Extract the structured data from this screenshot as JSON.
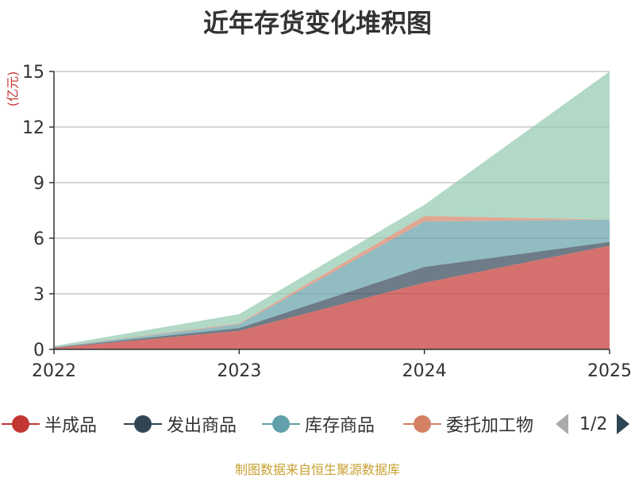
{
  "title": "近年存货变化堆积图",
  "unit_label": "(亿元)",
  "source": "制图数据来自恒生聚源数据库",
  "legend_page": "1/2",
  "chart_data": {
    "type": "area",
    "stacked": true,
    "title": "近年存货变化堆积图",
    "ylabel": "(亿元)",
    "xlabel": "",
    "x": [
      "2022",
      "2023",
      "2024",
      "2025"
    ],
    "ylim": [
      0,
      15
    ],
    "yticks": [
      0,
      3,
      6,
      9,
      12,
      15
    ],
    "grid": true,
    "legend_position": "bottom",
    "series": [
      {
        "name": "半成品",
        "color": "#c23531",
        "values": [
          0.08,
          1.0,
          3.6,
          5.6
        ]
      },
      {
        "name": "发出商品",
        "color": "#2f4554",
        "values": [
          0.02,
          0.15,
          0.85,
          0.2
        ]
      },
      {
        "name": "库存商品",
        "color": "#61a0a8",
        "values": [
          0.02,
          0.2,
          2.45,
          1.2
        ]
      },
      {
        "name": "委托加工物",
        "color": "#d48265",
        "values": [
          0.01,
          0.05,
          0.3,
          0.0
        ]
      },
      {
        "color": "#91c7ae",
        "values": [
          0.05,
          0.5,
          0.6,
          8.0
        ]
      }
    ]
  }
}
